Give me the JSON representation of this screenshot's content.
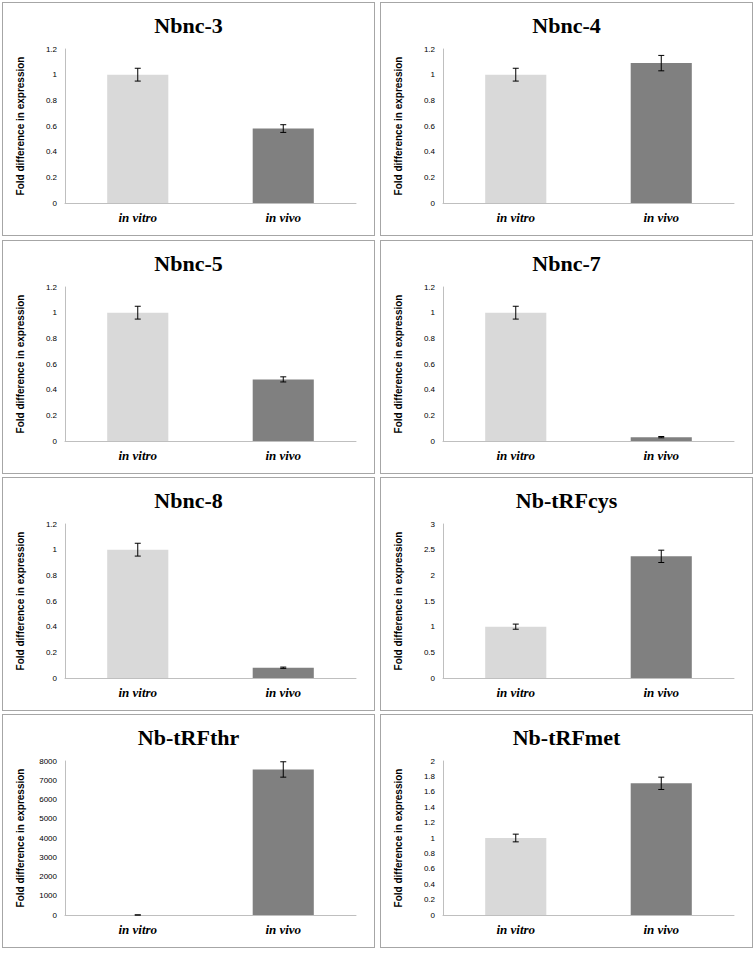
{
  "chart_data": [
    {
      "type": "bar",
      "title": "Nbnc-3",
      "y_label": "Fold difference in expression",
      "categories": [
        "in vitro",
        "in vivo"
      ],
      "values": [
        1,
        0.58
      ],
      "errors": [
        0.05,
        0.03
      ],
      "colors": [
        "#d9d9d9",
        "#808080"
      ],
      "ylim": [
        0,
        1.2
      ],
      "yticks": [
        0,
        0.2,
        0.4,
        0.6,
        0.8,
        1,
        1.2
      ],
      "grid": false
    },
    {
      "type": "bar",
      "title": "Nbnc-4",
      "y_label": "Fold difference in expression",
      "categories": [
        "in vitro",
        "in vivo"
      ],
      "values": [
        1,
        1.09
      ],
      "errors": [
        0.05,
        0.06
      ],
      "colors": [
        "#d9d9d9",
        "#808080"
      ],
      "ylim": [
        0,
        1.2
      ],
      "yticks": [
        0,
        0.2,
        0.4,
        0.6,
        0.8,
        1,
        1.2
      ],
      "grid": false
    },
    {
      "type": "bar",
      "title": "Nbnc-5",
      "y_label": "Fold difference in expression",
      "categories": [
        "in vitro",
        "in vivo"
      ],
      "values": [
        1,
        0.48
      ],
      "errors": [
        0.05,
        0.02
      ],
      "colors": [
        "#d9d9d9",
        "#808080"
      ],
      "ylim": [
        0,
        1.2
      ],
      "yticks": [
        0,
        0.2,
        0.4,
        0.6,
        0.8,
        1,
        1.2
      ],
      "grid": false
    },
    {
      "type": "bar",
      "title": "Nbnc-7",
      "y_label": "Fold difference in expression",
      "categories": [
        "in vitro",
        "in vivo"
      ],
      "values": [
        1,
        0.03
      ],
      "errors": [
        0.05,
        0.005
      ],
      "colors": [
        "#d9d9d9",
        "#808080"
      ],
      "ylim": [
        0,
        1.2
      ],
      "yticks": [
        0,
        0.2,
        0.4,
        0.6,
        0.8,
        1,
        1.2
      ],
      "grid": false
    },
    {
      "type": "bar",
      "title": "Nbnc-8",
      "y_label": "Fold difference in expression",
      "categories": [
        "in vitro",
        "in vivo"
      ],
      "values": [
        1,
        0.08
      ],
      "errors": [
        0.05,
        0.005
      ],
      "colors": [
        "#d9d9d9",
        "#808080"
      ],
      "ylim": [
        0,
        1.2
      ],
      "yticks": [
        0,
        0.2,
        0.4,
        0.6,
        0.8,
        1,
        1.2
      ],
      "grid": false
    },
    {
      "type": "bar",
      "title": "Nb-tRFcys",
      "y_label": "Fold difference in expression",
      "categories": [
        "in vitro",
        "in vivo"
      ],
      "values": [
        1,
        2.37
      ],
      "errors": [
        0.05,
        0.12
      ],
      "colors": [
        "#d9d9d9",
        "#808080"
      ],
      "ylim": [
        0,
        3
      ],
      "yticks": [
        0,
        0.5,
        1,
        1.5,
        2,
        2.5,
        3
      ],
      "grid": false
    },
    {
      "type": "bar",
      "title": "Nb-tRFthr",
      "y_label": "Fold difference in expression",
      "categories": [
        "in vitro",
        "in vivo"
      ],
      "values": [
        1,
        7560
      ],
      "errors": [
        0.05,
        400
      ],
      "colors": [
        "#d9d9d9",
        "#808080"
      ],
      "ylim": [
        0,
        8000
      ],
      "yticks": [
        0,
        1000,
        2000,
        3000,
        4000,
        5000,
        6000,
        7000,
        8000
      ],
      "grid": false
    },
    {
      "type": "bar",
      "title": "Nb-tRFmet",
      "y_label": "Fold difference in expression",
      "categories": [
        "in vitro",
        "in vivo"
      ],
      "values": [
        1,
        1.71
      ],
      "errors": [
        0.05,
        0.08
      ],
      "colors": [
        "#d9d9d9",
        "#808080"
      ],
      "ylim": [
        0,
        2
      ],
      "yticks": [
        0,
        0.2,
        0.4,
        0.6,
        0.8,
        1,
        1.2,
        1.4,
        1.6,
        1.8,
        2
      ],
      "grid": false
    }
  ]
}
